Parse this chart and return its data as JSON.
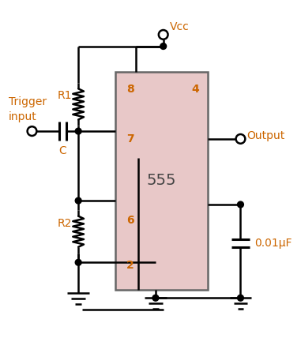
{
  "fig_width": 3.81,
  "fig_height": 4.28,
  "dpi": 100,
  "bg_color": "#ffffff",
  "ic_color": "#e8c8c8",
  "ic_edge_color": "#666666",
  "line_color": "#000000",
  "label_color": "#cc6600",
  "lw": 1.8,
  "ic_label": "555",
  "pin8_label": "8",
  "pin4_label": "4",
  "pin7_label": "7",
  "pin6_label": "6",
  "pin2_label": "2",
  "r1_label": "R1",
  "r2_label": "R2",
  "c_label": "C",
  "trigger_label1": "Trigger",
  "trigger_label2": "input",
  "vcc_label": "Vcc",
  "output_label": "Output",
  "cap_label": "0.01μF"
}
